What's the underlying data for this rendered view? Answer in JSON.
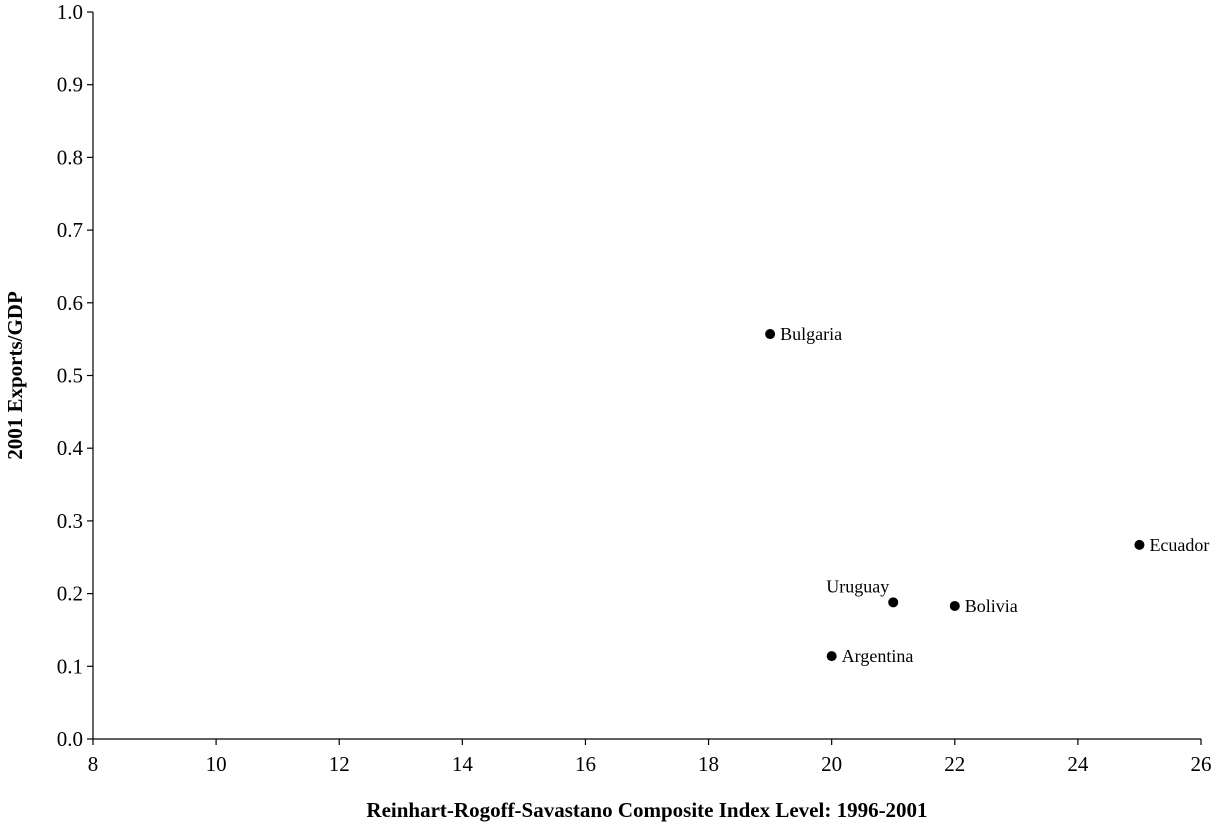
{
  "chart_data": {
    "type": "scatter",
    "title": "",
    "xlabel": "Reinhart-Rogoff-Savastano Composite Index Level: 1996-2001",
    "ylabel": "2001 Exports/GDP",
    "xlim": [
      8,
      26
    ],
    "ylim": [
      0.0,
      1.0
    ],
    "xticks": [
      "8",
      "10",
      "12",
      "14",
      "16",
      "18",
      "20",
      "22",
      "24",
      "26"
    ],
    "yticks": [
      "0.0",
      "0.1",
      "0.2",
      "0.3",
      "0.4",
      "0.5",
      "0.6",
      "0.7",
      "0.8",
      "0.9",
      "1.0"
    ],
    "grid": false,
    "legend": "none",
    "marker_color": "#000000",
    "points": [
      {
        "label": "Bulgaria",
        "x": 19,
        "y": 0.557,
        "label_side": "right"
      },
      {
        "label": "Ecuador",
        "x": 25,
        "y": 0.267,
        "label_side": "right"
      },
      {
        "label": "Uruguay",
        "x": 21,
        "y": 0.188,
        "label_side": "above-left"
      },
      {
        "label": "Bolivia",
        "x": 22,
        "y": 0.183,
        "label_side": "right"
      },
      {
        "label": "Argentina",
        "x": 20,
        "y": 0.114,
        "label_side": "right"
      }
    ]
  }
}
